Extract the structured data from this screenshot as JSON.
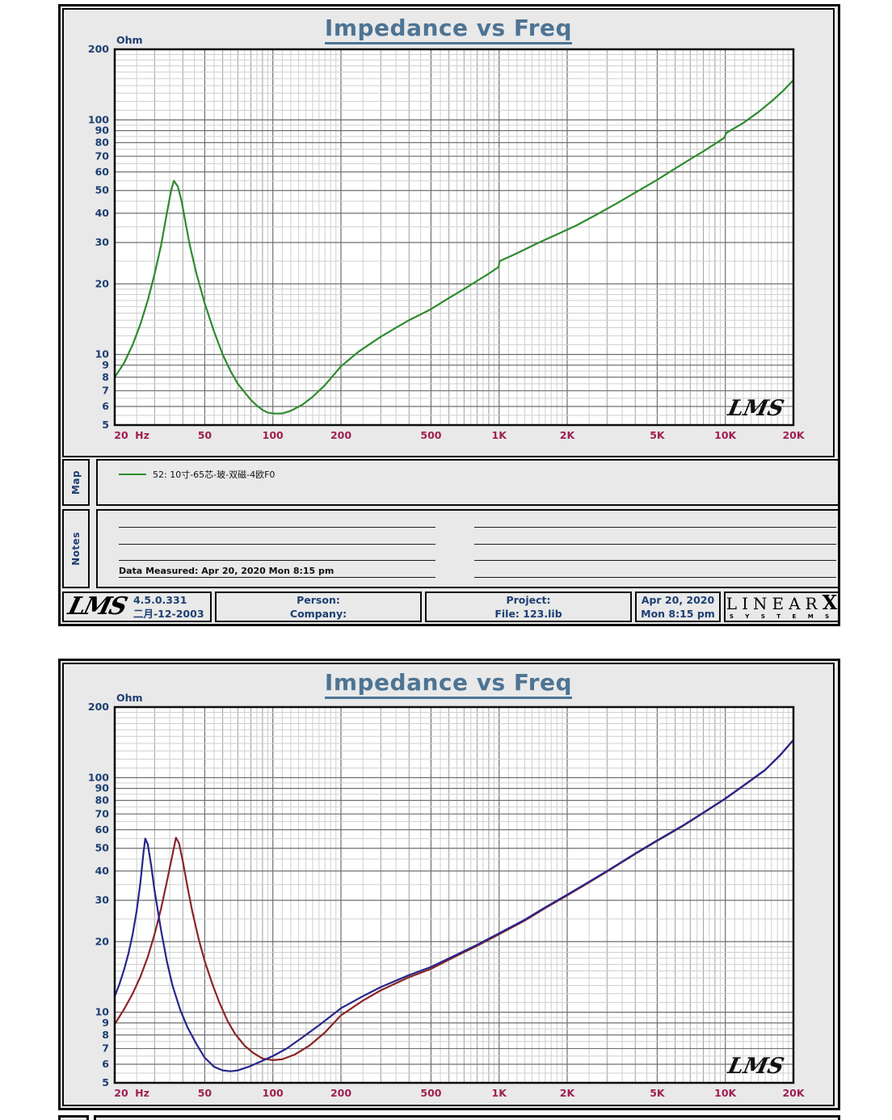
{
  "pages": [
    {
      "title": "Impedance vs Freq",
      "map": {
        "section_label": "Map",
        "legend_label": "52: 10寸-65芯-玻-双磁-4欧F0",
        "legend_color": "#2e8b2e"
      },
      "notes": {
        "section_label": "Notes",
        "data_measured": "Data Measured: Apr 20, 2020  Mon  8:15 pm"
      },
      "footer": {
        "lms_logo": "LMS",
        "version": "4.5.0.331",
        "version_date": "二月-12-2003",
        "person_label": "Person:",
        "company_label": "Company:",
        "project_label": "Project:",
        "file_label": "File: 123.lib",
        "date": "Apr 20, 2020",
        "time": "Mon  8:15 pm",
        "brand_linear": "LINEAR",
        "brand_x": "X",
        "brand_sub": "S Y S T E M S"
      }
    },
    {
      "title": "Impedance vs Freq"
    }
  ],
  "colors": {
    "page_bg": "#e9e9e9",
    "title": "#4e7494",
    "y_axis_text": "#1d3f72",
    "x_axis_text": "#a02050",
    "curve_green": "#2e8b2e",
    "curve_navy": "#26268c",
    "curve_maroon": "#8b2525"
  },
  "chart_data": [
    {
      "type": "line",
      "title": "Impedance vs Freq",
      "x_scale": "log",
      "y_scale": "log",
      "xlim": [
        20,
        20000
      ],
      "ylim": [
        5,
        200
      ],
      "ylabel": "Ohm",
      "x_unit": "Hz",
      "watermark": "LMS",
      "x_ticks": [
        {
          "value": 20,
          "label": "20"
        },
        {
          "value": 50,
          "label": "50"
        },
        {
          "value": 100,
          "label": "100"
        },
        {
          "value": 200,
          "label": "200"
        },
        {
          "value": 500,
          "label": "500"
        },
        {
          "value": 1000,
          "label": "1K"
        },
        {
          "value": 2000,
          "label": "2K"
        },
        {
          "value": 5000,
          "label": "5K"
        },
        {
          "value": 10000,
          "label": "10K"
        },
        {
          "value": 20000,
          "label": "20K"
        }
      ],
      "y_ticks": [
        200,
        100,
        90,
        80,
        70,
        60,
        50,
        40,
        30,
        20,
        10,
        9,
        8,
        7,
        6,
        5
      ],
      "series": [
        {
          "name": "52: 10寸-65芯-玻-双磁-4欧F0",
          "color": "#2e8b2e",
          "freq_hz": [
            20,
            22,
            24,
            26,
            28,
            30,
            32,
            34,
            35.5,
            36.5,
            38,
            39.5,
            41,
            43,
            46,
            50,
            55,
            60,
            65,
            70,
            75,
            80,
            85,
            90,
            95,
            100,
            110,
            120,
            135,
            150,
            170,
            200,
            240,
            300,
            350,
            400,
            500,
            600,
            700,
            800,
            900,
            995,
            1005,
            1200,
            1500,
            1800,
            2200,
            2700,
            3300,
            4000,
            5000,
            6000,
            7000,
            8000,
            9000,
            9900,
            10100,
            12000,
            14000,
            16000,
            18000,
            20000
          ],
          "impedance_ohm": [
            8,
            9.2,
            11,
            13.5,
            17,
            22,
            29,
            40,
            50,
            55,
            52,
            45,
            37,
            29,
            22,
            16.5,
            12.5,
            10,
            8.5,
            7.5,
            6.9,
            6.4,
            6.05,
            5.8,
            5.65,
            5.6,
            5.6,
            5.75,
            6.1,
            6.6,
            7.4,
            8.9,
            10.3,
            11.9,
            13,
            14,
            15.6,
            17.4,
            19,
            20.6,
            22.1,
            23.6,
            25,
            27,
            30,
            32.5,
            35.5,
            39.5,
            44,
            49,
            55.5,
            62,
            68,
            73.5,
            79,
            84,
            88,
            97,
            108,
            120,
            133,
            148
          ]
        }
      ]
    },
    {
      "type": "line",
      "title": "Impedance vs Freq",
      "x_scale": "log",
      "y_scale": "log",
      "xlim": [
        20,
        20000
      ],
      "ylim": [
        5,
        200
      ],
      "ylabel": "Ohm",
      "x_unit": "Hz",
      "watermark": "LMS",
      "x_ticks": [
        {
          "value": 20,
          "label": "20"
        },
        {
          "value": 50,
          "label": "50"
        },
        {
          "value": 100,
          "label": "100"
        },
        {
          "value": 200,
          "label": "200"
        },
        {
          "value": 500,
          "label": "500"
        },
        {
          "value": 1000,
          "label": "1K"
        },
        {
          "value": 2000,
          "label": "2K"
        },
        {
          "value": 5000,
          "label": "5K"
        },
        {
          "value": 10000,
          "label": "10K"
        },
        {
          "value": 20000,
          "label": "20K"
        }
      ],
      "y_ticks": [
        200,
        100,
        90,
        80,
        70,
        60,
        50,
        40,
        30,
        20,
        10,
        9,
        8,
        7,
        6,
        5
      ],
      "series": [
        {
          "color": "#8b2525",
          "freq_hz": [
            20,
            22,
            24,
            26,
            28,
            30,
            32,
            34,
            36,
            37.3,
            38.5,
            40,
            42,
            44,
            47,
            50,
            54,
            58,
            63,
            68,
            75,
            82,
            90,
            100,
            110,
            125,
            145,
            170,
            200,
            250,
            300,
            400,
            500,
            650,
            800,
            1000,
            1300,
            1600,
            2000,
            2500,
            3000,
            4000,
            5000,
            6500,
            8000,
            10000,
            12500,
            15000,
            17500,
            20000
          ],
          "impedance_ohm": [
            8.9,
            10.3,
            12,
            14.2,
            17.2,
            21.5,
            27.5,
            36,
            47,
            55.5,
            52.5,
            44,
            34,
            27,
            20.5,
            16.5,
            13.2,
            11,
            9.2,
            8.1,
            7.2,
            6.7,
            6.35,
            6.25,
            6.3,
            6.6,
            7.2,
            8.2,
            9.7,
            11.2,
            12.4,
            14.1,
            15.3,
            17.4,
            19.2,
            21.5,
            24.6,
            27.8,
            31.5,
            35.8,
            39.8,
            47.3,
            53.8,
            62.3,
            70.8,
            81.3,
            94.8,
            107.8,
            124.8,
            144.8
          ]
        },
        {
          "color": "#26268c",
          "freq_hz": [
            20,
            21,
            22,
            23,
            24,
            25,
            26,
            26.8,
            27.3,
            28,
            29,
            30,
            32,
            34,
            36,
            39,
            42,
            46,
            50,
            55,
            60,
            65,
            70,
            78,
            88,
            100,
            115,
            135,
            160,
            200,
            250,
            300,
            400,
            500,
            650,
            800,
            1000,
            1300,
            1600,
            2000,
            2500,
            3000,
            4000,
            5000,
            6500,
            8000,
            10000,
            12500,
            15000,
            17500,
            20000
          ],
          "impedance_ohm": [
            11.7,
            13.2,
            15.2,
            17.8,
            21.5,
            27,
            36,
            48,
            55,
            52,
            42,
            33,
            22.5,
            16.5,
            13,
            10.2,
            8.6,
            7.3,
            6.4,
            5.85,
            5.65,
            5.6,
            5.65,
            5.85,
            6.15,
            6.5,
            7,
            7.8,
            8.8,
            10.4,
            11.7,
            12.8,
            14.4,
            15.6,
            17.6,
            19.4,
            21.7,
            24.8,
            28,
            31.7,
            36,
            40,
            47.5,
            54,
            62.5,
            71,
            81.5,
            95,
            108,
            125,
            145
          ]
        }
      ]
    }
  ]
}
